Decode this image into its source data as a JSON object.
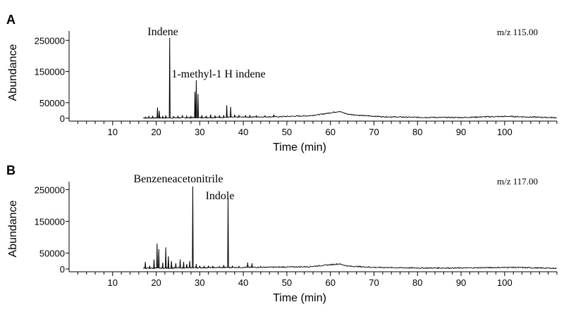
{
  "chart_data": [
    {
      "panel": "A",
      "type": "line",
      "ion_label": "m/z 115.00",
      "xlabel": "Time (min)",
      "ylabel": "Abundance",
      "xlim": [
        0,
        112
      ],
      "ylim": [
        0,
        280000
      ],
      "x_ticks": [
        10,
        20,
        30,
        40,
        50,
        60,
        70,
        80,
        90,
        100
      ],
      "y_ticks": [
        0,
        50000,
        150000,
        250000
      ],
      "annotations": [
        {
          "text": "Indene",
          "x": 23.1
        },
        {
          "text": "1-methyl-1 H indene",
          "x": 29.2
        }
      ],
      "peaks": [
        {
          "x": 17.5,
          "y": 4000
        },
        {
          "x": 18.3,
          "y": 6000
        },
        {
          "x": 19.2,
          "y": 8000
        },
        {
          "x": 20.3,
          "y": 35000
        },
        {
          "x": 20.7,
          "y": 24000
        },
        {
          "x": 21.5,
          "y": 6000
        },
        {
          "x": 22.2,
          "y": 9000
        },
        {
          "x": 23.1,
          "y": 258000
        },
        {
          "x": 24.0,
          "y": 7000
        },
        {
          "x": 25.0,
          "y": 8000
        },
        {
          "x": 26.0,
          "y": 10000
        },
        {
          "x": 27.0,
          "y": 7000
        },
        {
          "x": 28.0,
          "y": 6000
        },
        {
          "x": 28.9,
          "y": 85000
        },
        {
          "x": 29.2,
          "y": 122000
        },
        {
          "x": 29.6,
          "y": 78000
        },
        {
          "x": 30.5,
          "y": 10000
        },
        {
          "x": 31.5,
          "y": 8000
        },
        {
          "x": 32.5,
          "y": 12000
        },
        {
          "x": 33.5,
          "y": 9000
        },
        {
          "x": 34.5,
          "y": 8000
        },
        {
          "x": 35.5,
          "y": 10000
        },
        {
          "x": 36.2,
          "y": 42000
        },
        {
          "x": 37.1,
          "y": 36000
        },
        {
          "x": 38.0,
          "y": 12000
        },
        {
          "x": 39.0,
          "y": 9000
        },
        {
          "x": 40.5,
          "y": 10000
        },
        {
          "x": 41.5,
          "y": 9000
        },
        {
          "x": 43.0,
          "y": 8000
        },
        {
          "x": 45.0,
          "y": 8000
        },
        {
          "x": 47.0,
          "y": 12000
        }
      ],
      "baseline": [
        {
          "x": 17,
          "y": 1000
        },
        {
          "x": 30,
          "y": 2000
        },
        {
          "x": 40,
          "y": 4000
        },
        {
          "x": 48,
          "y": 5000
        },
        {
          "x": 55,
          "y": 8000
        },
        {
          "x": 58,
          "y": 13000
        },
        {
          "x": 61,
          "y": 20000
        },
        {
          "x": 62,
          "y": 22000
        },
        {
          "x": 64,
          "y": 13000
        },
        {
          "x": 67,
          "y": 9000
        },
        {
          "x": 72,
          "y": 5000
        },
        {
          "x": 80,
          "y": 3000
        },
        {
          "x": 90,
          "y": 2500
        },
        {
          "x": 95,
          "y": 4500
        },
        {
          "x": 101,
          "y": 6000
        },
        {
          "x": 106,
          "y": 4000
        },
        {
          "x": 112,
          "y": 2000
        }
      ]
    },
    {
      "panel": "B",
      "type": "line",
      "ion_label": "m/z 117.00",
      "xlabel": "Time (min)",
      "ylabel": "Abundance",
      "xlim": [
        0,
        112
      ],
      "ylim": [
        0,
        275000
      ],
      "x_ticks": [
        10,
        20,
        30,
        40,
        50,
        60,
        70,
        80,
        90,
        100
      ],
      "y_ticks": [
        0,
        50000,
        150000,
        250000
      ],
      "annotations": [
        {
          "text": "Benzeneacetonitrile",
          "x": 28.4
        },
        {
          "text": "Indole",
          "x": 36.5
        }
      ],
      "peaks": [
        {
          "x": 17.5,
          "y": 22000
        },
        {
          "x": 18.5,
          "y": 10000
        },
        {
          "x": 19.5,
          "y": 30000
        },
        {
          "x": 20.2,
          "y": 80000
        },
        {
          "x": 20.6,
          "y": 62000
        },
        {
          "x": 21.5,
          "y": 20000
        },
        {
          "x": 22.2,
          "y": 68000
        },
        {
          "x": 22.8,
          "y": 40000
        },
        {
          "x": 23.5,
          "y": 25000
        },
        {
          "x": 24.5,
          "y": 18000
        },
        {
          "x": 25.5,
          "y": 30000
        },
        {
          "x": 26.3,
          "y": 22000
        },
        {
          "x": 27.0,
          "y": 15000
        },
        {
          "x": 27.7,
          "y": 25000
        },
        {
          "x": 28.4,
          "y": 260000
        },
        {
          "x": 29.2,
          "y": 15000
        },
        {
          "x": 30.0,
          "y": 10000
        },
        {
          "x": 31.0,
          "y": 8000
        },
        {
          "x": 32.0,
          "y": 10000
        },
        {
          "x": 33.0,
          "y": 8000
        },
        {
          "x": 34.5,
          "y": 7000
        },
        {
          "x": 35.5,
          "y": 12000
        },
        {
          "x": 36.5,
          "y": 222000
        },
        {
          "x": 37.5,
          "y": 10000
        },
        {
          "x": 39.0,
          "y": 8000
        },
        {
          "x": 41.0,
          "y": 20000
        },
        {
          "x": 42.0,
          "y": 18000
        },
        {
          "x": 44.0,
          "y": 8000
        }
      ],
      "baseline": [
        {
          "x": 17,
          "y": 2000
        },
        {
          "x": 30,
          "y": 4000
        },
        {
          "x": 40,
          "y": 5000
        },
        {
          "x": 50,
          "y": 6000
        },
        {
          "x": 55,
          "y": 7000
        },
        {
          "x": 59,
          "y": 12000
        },
        {
          "x": 62,
          "y": 16000
        },
        {
          "x": 64,
          "y": 9000
        },
        {
          "x": 70,
          "y": 5000
        },
        {
          "x": 80,
          "y": 3000
        },
        {
          "x": 90,
          "y": 3000
        },
        {
          "x": 95,
          "y": 4000
        },
        {
          "x": 102,
          "y": 5000
        },
        {
          "x": 108,
          "y": 3000
        },
        {
          "x": 112,
          "y": 2000
        }
      ]
    }
  ],
  "panel_labels": [
    "A",
    "B"
  ],
  "colors": {
    "trace": "#000000",
    "axis": "#000000",
    "background": "#ffffff"
  }
}
